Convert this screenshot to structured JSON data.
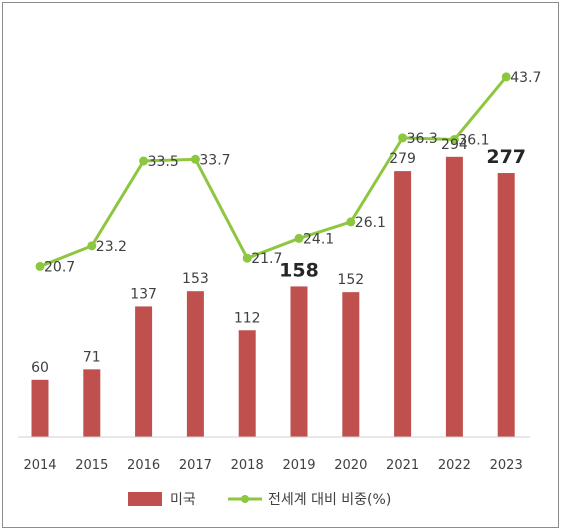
{
  "chart_data": {
    "type": "bar",
    "title": "",
    "xlabel": "",
    "ylabel": "",
    "grid": false,
    "legend_position": "bottom",
    "categories": [
      "2014",
      "2015",
      "2016",
      "2017",
      "2018",
      "2019",
      "2020",
      "2021",
      "2022",
      "2023"
    ],
    "series": [
      {
        "name": "미국",
        "type": "bar",
        "color": "#c0504d",
        "values": [
          60,
          71,
          137,
          153,
          112,
          158,
          152,
          279,
          294,
          277
        ],
        "labels": [
          "60",
          "71",
          "137",
          "153",
          "112",
          "158",
          "152",
          "279",
          "294",
          "277"
        ],
        "bold_labels": [
          "2019",
          "2023"
        ],
        "ylim": [
          0,
          300
        ]
      },
      {
        "name": "전세계 대비 비중(%)",
        "type": "line",
        "color": "#8dc63f",
        "values": [
          20.7,
          23.2,
          33.5,
          33.7,
          21.7,
          24.1,
          26.1,
          36.3,
          36.1,
          43.7
        ],
        "labels": [
          "20.7",
          "23.2",
          "33.5",
          "33.7",
          "21.7",
          "24.1",
          "26.1",
          "36.3",
          "36.1",
          "43.7"
        ],
        "ylim": [
          0,
          50
        ]
      }
    ]
  }
}
